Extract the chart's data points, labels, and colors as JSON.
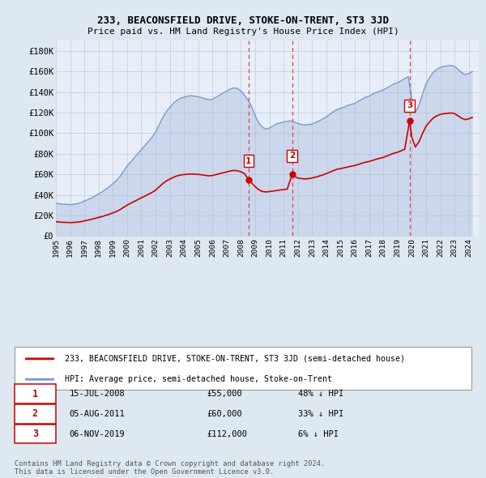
{
  "title": "233, BEACONSFIELD DRIVE, STOKE-ON-TRENT, ST3 3JD",
  "subtitle": "Price paid vs. HM Land Registry's House Price Index (HPI)",
  "ylim": [
    0,
    190000
  ],
  "yticks": [
    0,
    20000,
    40000,
    60000,
    80000,
    100000,
    120000,
    140000,
    160000,
    180000
  ],
  "ytick_labels": [
    "£0",
    "£20K",
    "£40K",
    "£60K",
    "£80K",
    "£100K",
    "£120K",
    "£140K",
    "£160K",
    "£180K"
  ],
  "xlim_start": 1995.0,
  "xlim_end": 2024.7,
  "sale_dates": [
    2008.536,
    2011.592,
    2019.846
  ],
  "sale_prices": [
    55000,
    60000,
    112000
  ],
  "sale_labels": [
    "1",
    "2",
    "3"
  ],
  "red_line_color": "#cc0000",
  "blue_line_color": "#7799cc",
  "blue_fill_color": "#aabbdd",
  "dashed_line_color": "#dd4444",
  "background_color": "#e8eef8",
  "outer_bg_color": "#dde8f0",
  "grid_color": "#bbccdd",
  "legend_label_red": "233, BEACONSFIELD DRIVE, STOKE-ON-TRENT, ST3 3JD (semi-detached house)",
  "legend_label_blue": "HPI: Average price, semi-detached house, Stoke-on-Trent",
  "table_entries": [
    {
      "num": "1",
      "date": "15-JUL-2008",
      "price": "£55,000",
      "hpi": "48% ↓ HPI"
    },
    {
      "num": "2",
      "date": "05-AUG-2011",
      "price": "£60,000",
      "hpi": "33% ↓ HPI"
    },
    {
      "num": "3",
      "date": "06-NOV-2019",
      "price": "£112,000",
      "hpi": "6% ↓ HPI"
    }
  ],
  "footnote": "Contains HM Land Registry data © Crown copyright and database right 2024.\nThis data is licensed under the Open Government Licence v3.0.",
  "hpi_years": [
    1995.0,
    1995.25,
    1995.5,
    1995.75,
    1996.0,
    1996.25,
    1996.5,
    1996.75,
    1997.0,
    1997.25,
    1997.5,
    1997.75,
    1998.0,
    1998.25,
    1998.5,
    1998.75,
    1999.0,
    1999.25,
    1999.5,
    1999.75,
    2000.0,
    2000.25,
    2000.5,
    2000.75,
    2001.0,
    2001.25,
    2001.5,
    2001.75,
    2002.0,
    2002.25,
    2002.5,
    2002.75,
    2003.0,
    2003.25,
    2003.5,
    2003.75,
    2004.0,
    2004.25,
    2004.5,
    2004.75,
    2005.0,
    2005.25,
    2005.5,
    2005.75,
    2006.0,
    2006.25,
    2006.5,
    2006.75,
    2007.0,
    2007.25,
    2007.5,
    2007.75,
    2008.0,
    2008.25,
    2008.5,
    2008.75,
    2009.0,
    2009.25,
    2009.5,
    2009.75,
    2010.0,
    2010.25,
    2010.5,
    2010.75,
    2011.0,
    2011.25,
    2011.5,
    2011.75,
    2012.0,
    2012.25,
    2012.5,
    2012.75,
    2013.0,
    2013.25,
    2013.5,
    2013.75,
    2014.0,
    2014.25,
    2014.5,
    2014.75,
    2015.0,
    2015.25,
    2015.5,
    2015.75,
    2016.0,
    2016.25,
    2016.5,
    2016.75,
    2017.0,
    2017.25,
    2017.5,
    2017.75,
    2018.0,
    2018.25,
    2018.5,
    2018.75,
    2019.0,
    2019.25,
    2019.5,
    2019.75,
    2020.0,
    2020.25,
    2020.5,
    2020.75,
    2021.0,
    2021.25,
    2021.5,
    2021.75,
    2022.0,
    2022.25,
    2022.5,
    2022.75,
    2023.0,
    2023.25,
    2023.5,
    2023.75,
    2024.0,
    2024.25
  ],
  "hpi_values": [
    32000,
    31500,
    31000,
    30800,
    30500,
    31000,
    31500,
    32500,
    34000,
    35500,
    37000,
    39000,
    41000,
    43000,
    45500,
    48000,
    51000,
    54000,
    58000,
    63000,
    68000,
    72000,
    76000,
    80000,
    84000,
    88000,
    92000,
    96000,
    101000,
    108000,
    115000,
    121000,
    125000,
    129000,
    132000,
    134000,
    135000,
    136000,
    136500,
    136000,
    135500,
    134500,
    133500,
    132500,
    133000,
    135000,
    137000,
    139000,
    141000,
    143000,
    144000,
    143500,
    141000,
    137000,
    132000,
    126000,
    117000,
    110000,
    106000,
    104000,
    105000,
    107000,
    109000,
    110000,
    111000,
    111500,
    112000,
    111000,
    109500,
    108500,
    108000,
    108500,
    109000,
    110500,
    112000,
    114000,
    116000,
    118500,
    121000,
    123000,
    124000,
    125500,
    127000,
    128000,
    129000,
    131000,
    133000,
    135000,
    136000,
    138000,
    139500,
    141000,
    142000,
    144000,
    146000,
    148000,
    149000,
    151000,
    153000,
    155000,
    133000,
    120000,
    127000,
    138000,
    148000,
    154000,
    159000,
    162000,
    164000,
    165000,
    165500,
    166000,
    165000,
    162000,
    159000,
    157000,
    158000,
    160000
  ],
  "red_years": [
    1995.0,
    1995.25,
    1995.5,
    1995.75,
    1996.0,
    1996.25,
    1996.5,
    1996.75,
    1997.0,
    1997.25,
    1997.5,
    1997.75,
    1998.0,
    1998.25,
    1998.5,
    1998.75,
    1999.0,
    1999.25,
    1999.5,
    1999.75,
    2000.0,
    2000.25,
    2000.5,
    2000.75,
    2001.0,
    2001.25,
    2001.5,
    2001.75,
    2002.0,
    2002.25,
    2002.5,
    2002.75,
    2003.0,
    2003.25,
    2003.5,
    2003.75,
    2004.0,
    2004.25,
    2004.5,
    2004.75,
    2005.0,
    2005.25,
    2005.5,
    2005.75,
    2006.0,
    2006.25,
    2006.5,
    2006.75,
    2007.0,
    2007.25,
    2007.5,
    2007.75,
    2008.0,
    2008.25,
    2008.536,
    2008.75,
    2009.0,
    2009.25,
    2009.5,
    2009.75,
    2010.0,
    2010.25,
    2010.5,
    2010.75,
    2011.0,
    2011.25,
    2011.592,
    2011.75,
    2012.0,
    2012.25,
    2012.5,
    2012.75,
    2013.0,
    2013.25,
    2013.5,
    2013.75,
    2014.0,
    2014.25,
    2014.5,
    2014.75,
    2015.0,
    2015.25,
    2015.5,
    2015.75,
    2016.0,
    2016.25,
    2016.5,
    2016.75,
    2017.0,
    2017.25,
    2017.5,
    2017.75,
    2018.0,
    2018.25,
    2018.5,
    2018.75,
    2019.0,
    2019.25,
    2019.5,
    2019.846,
    2020.0,
    2020.25,
    2020.5,
    2020.75,
    2021.0,
    2021.25,
    2021.5,
    2021.75,
    2022.0,
    2022.25,
    2022.5,
    2022.75,
    2023.0,
    2023.25,
    2023.5,
    2023.75,
    2024.0,
    2024.25
  ],
  "red_values": [
    14000,
    13700,
    13400,
    13300,
    13100,
    13300,
    13600,
    14000,
    14800,
    15500,
    16400,
    17200,
    18200,
    19000,
    20200,
    21300,
    22600,
    23900,
    25700,
    27900,
    30100,
    31900,
    33700,
    35400,
    37200,
    38900,
    40700,
    42400,
    44700,
    47800,
    50900,
    53600,
    55400,
    57100,
    58500,
    59400,
    59800,
    60200,
    60400,
    60200,
    60000,
    59600,
    59000,
    58600,
    58900,
    59800,
    60700,
    61500,
    62400,
    63300,
    63800,
    63600,
    62500,
    60700,
    55000,
    51800,
    48000,
    45100,
    43400,
    42900,
    43300,
    43800,
    44300,
    44800,
    45300,
    45600,
    60000,
    57900,
    56500,
    55900,
    55600,
    55900,
    56500,
    57300,
    58400,
    59500,
    60800,
    62200,
    63700,
    65000,
    65600,
    66400,
    67200,
    68000,
    68600,
    69700,
    70800,
    71800,
    72500,
    73600,
    74700,
    75700,
    76500,
    77900,
    79300,
    80600,
    81500,
    82900,
    84400,
    112000,
    96200,
    86600,
    91600,
    99600,
    106800,
    111100,
    114700,
    116900,
    118300,
    119000,
    119400,
    119700,
    119100,
    116900,
    114600,
    113200,
    114000,
    115400
  ]
}
